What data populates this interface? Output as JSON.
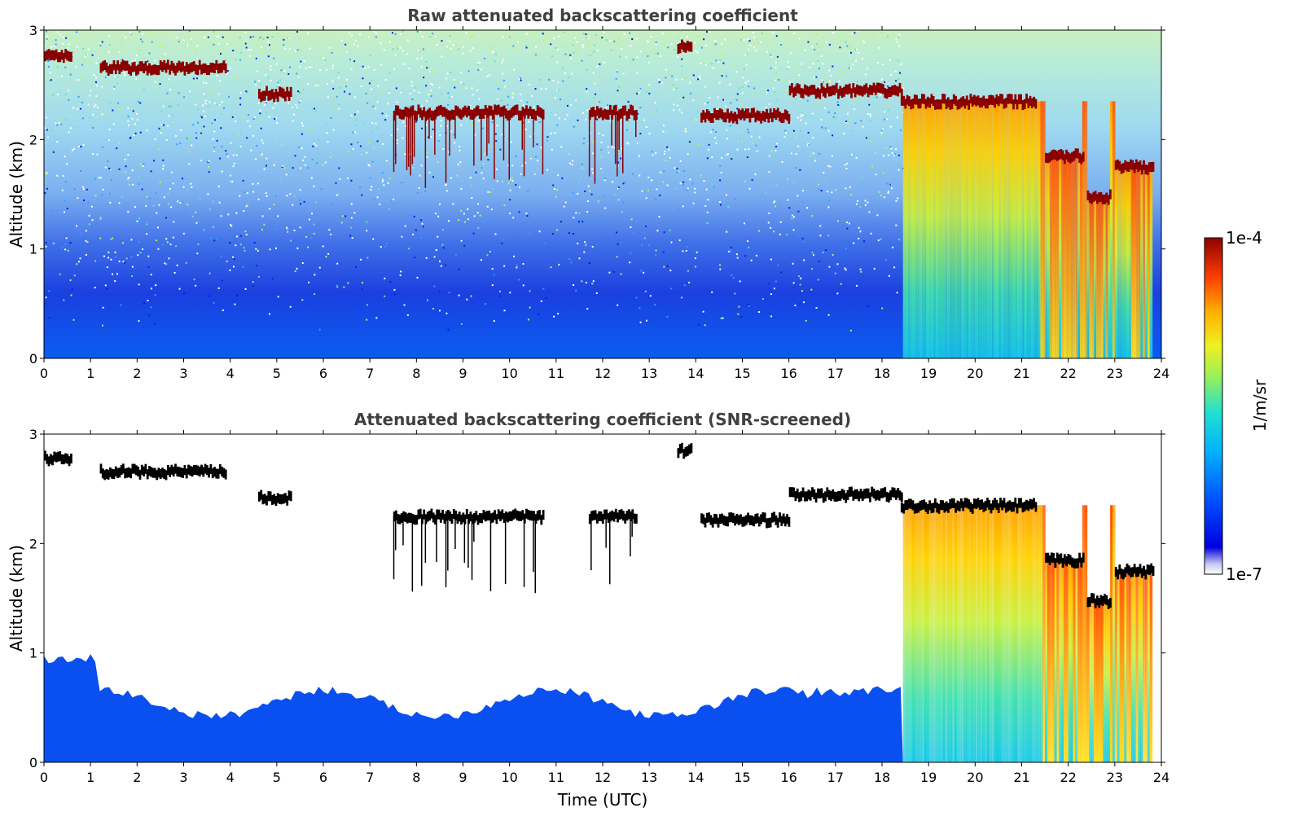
{
  "chart_data": [
    {
      "type": "heatmap",
      "title": "Raw attenuated backscattering coefficient",
      "ylabel": "Altitude (km)",
      "xlabel": "",
      "xlim": [
        0,
        24
      ],
      "ylim": [
        0,
        3
      ],
      "xticks": [
        "0",
        "1",
        "2",
        "3",
        "4",
        "5",
        "6",
        "7",
        "8",
        "9",
        "10",
        "11",
        "12",
        "13",
        "14",
        "15",
        "16",
        "17",
        "18",
        "19",
        "20",
        "21",
        "22",
        "23",
        "24"
      ],
      "yticks": [
        "0",
        "1",
        "2",
        "3"
      ],
      "colorscale": "jet",
      "screened": false,
      "features": {
        "cloud_base_km": [
          {
            "x0": 0.0,
            "x1": 0.6,
            "y": 2.78
          },
          {
            "x0": 1.2,
            "x1": 3.9,
            "y": 2.66
          },
          {
            "x0": 4.6,
            "x1": 5.3,
            "y": 2.42
          },
          {
            "x0": 7.5,
            "x1": 10.7,
            "y": 2.25
          },
          {
            "x0": 11.7,
            "x1": 12.7,
            "y": 2.25
          },
          {
            "x0": 13.6,
            "x1": 13.9,
            "y": 2.85
          },
          {
            "x0": 14.1,
            "x1": 16.0,
            "y": 2.22
          },
          {
            "x0": 16.0,
            "x1": 18.4,
            "y": 2.45
          },
          {
            "x0": 18.4,
            "x1": 21.3,
            "y": 2.35
          },
          {
            "x0": 21.5,
            "x1": 22.3,
            "y": 1.85
          },
          {
            "x0": 22.4,
            "x1": 22.9,
            "y": 1.48
          },
          {
            "x0": 23.0,
            "x1": 23.8,
            "y": 1.75
          }
        ],
        "precipitation_start_utc": 18.45,
        "data_end_utc": 23.8
      }
    },
    {
      "type": "heatmap",
      "title": "Attenuated backscattering coefficient (SNR-screened)",
      "ylabel": "Altitude (km)",
      "xlabel": "Time (UTC)",
      "xlim": [
        0,
        24
      ],
      "ylim": [
        0,
        3
      ],
      "xticks": [
        "0",
        "1",
        "2",
        "3",
        "4",
        "5",
        "6",
        "7",
        "8",
        "9",
        "10",
        "11",
        "12",
        "13",
        "14",
        "15",
        "16",
        "17",
        "18",
        "19",
        "20",
        "21",
        "22",
        "23",
        "24"
      ],
      "yticks": [
        "0",
        "1",
        "2",
        "3"
      ],
      "colorscale": "jet",
      "screened": true
    }
  ],
  "colorbar": {
    "min_label": "1e-7",
    "max_label": "1e-4",
    "label": "1/m/sr",
    "scale": "log"
  }
}
